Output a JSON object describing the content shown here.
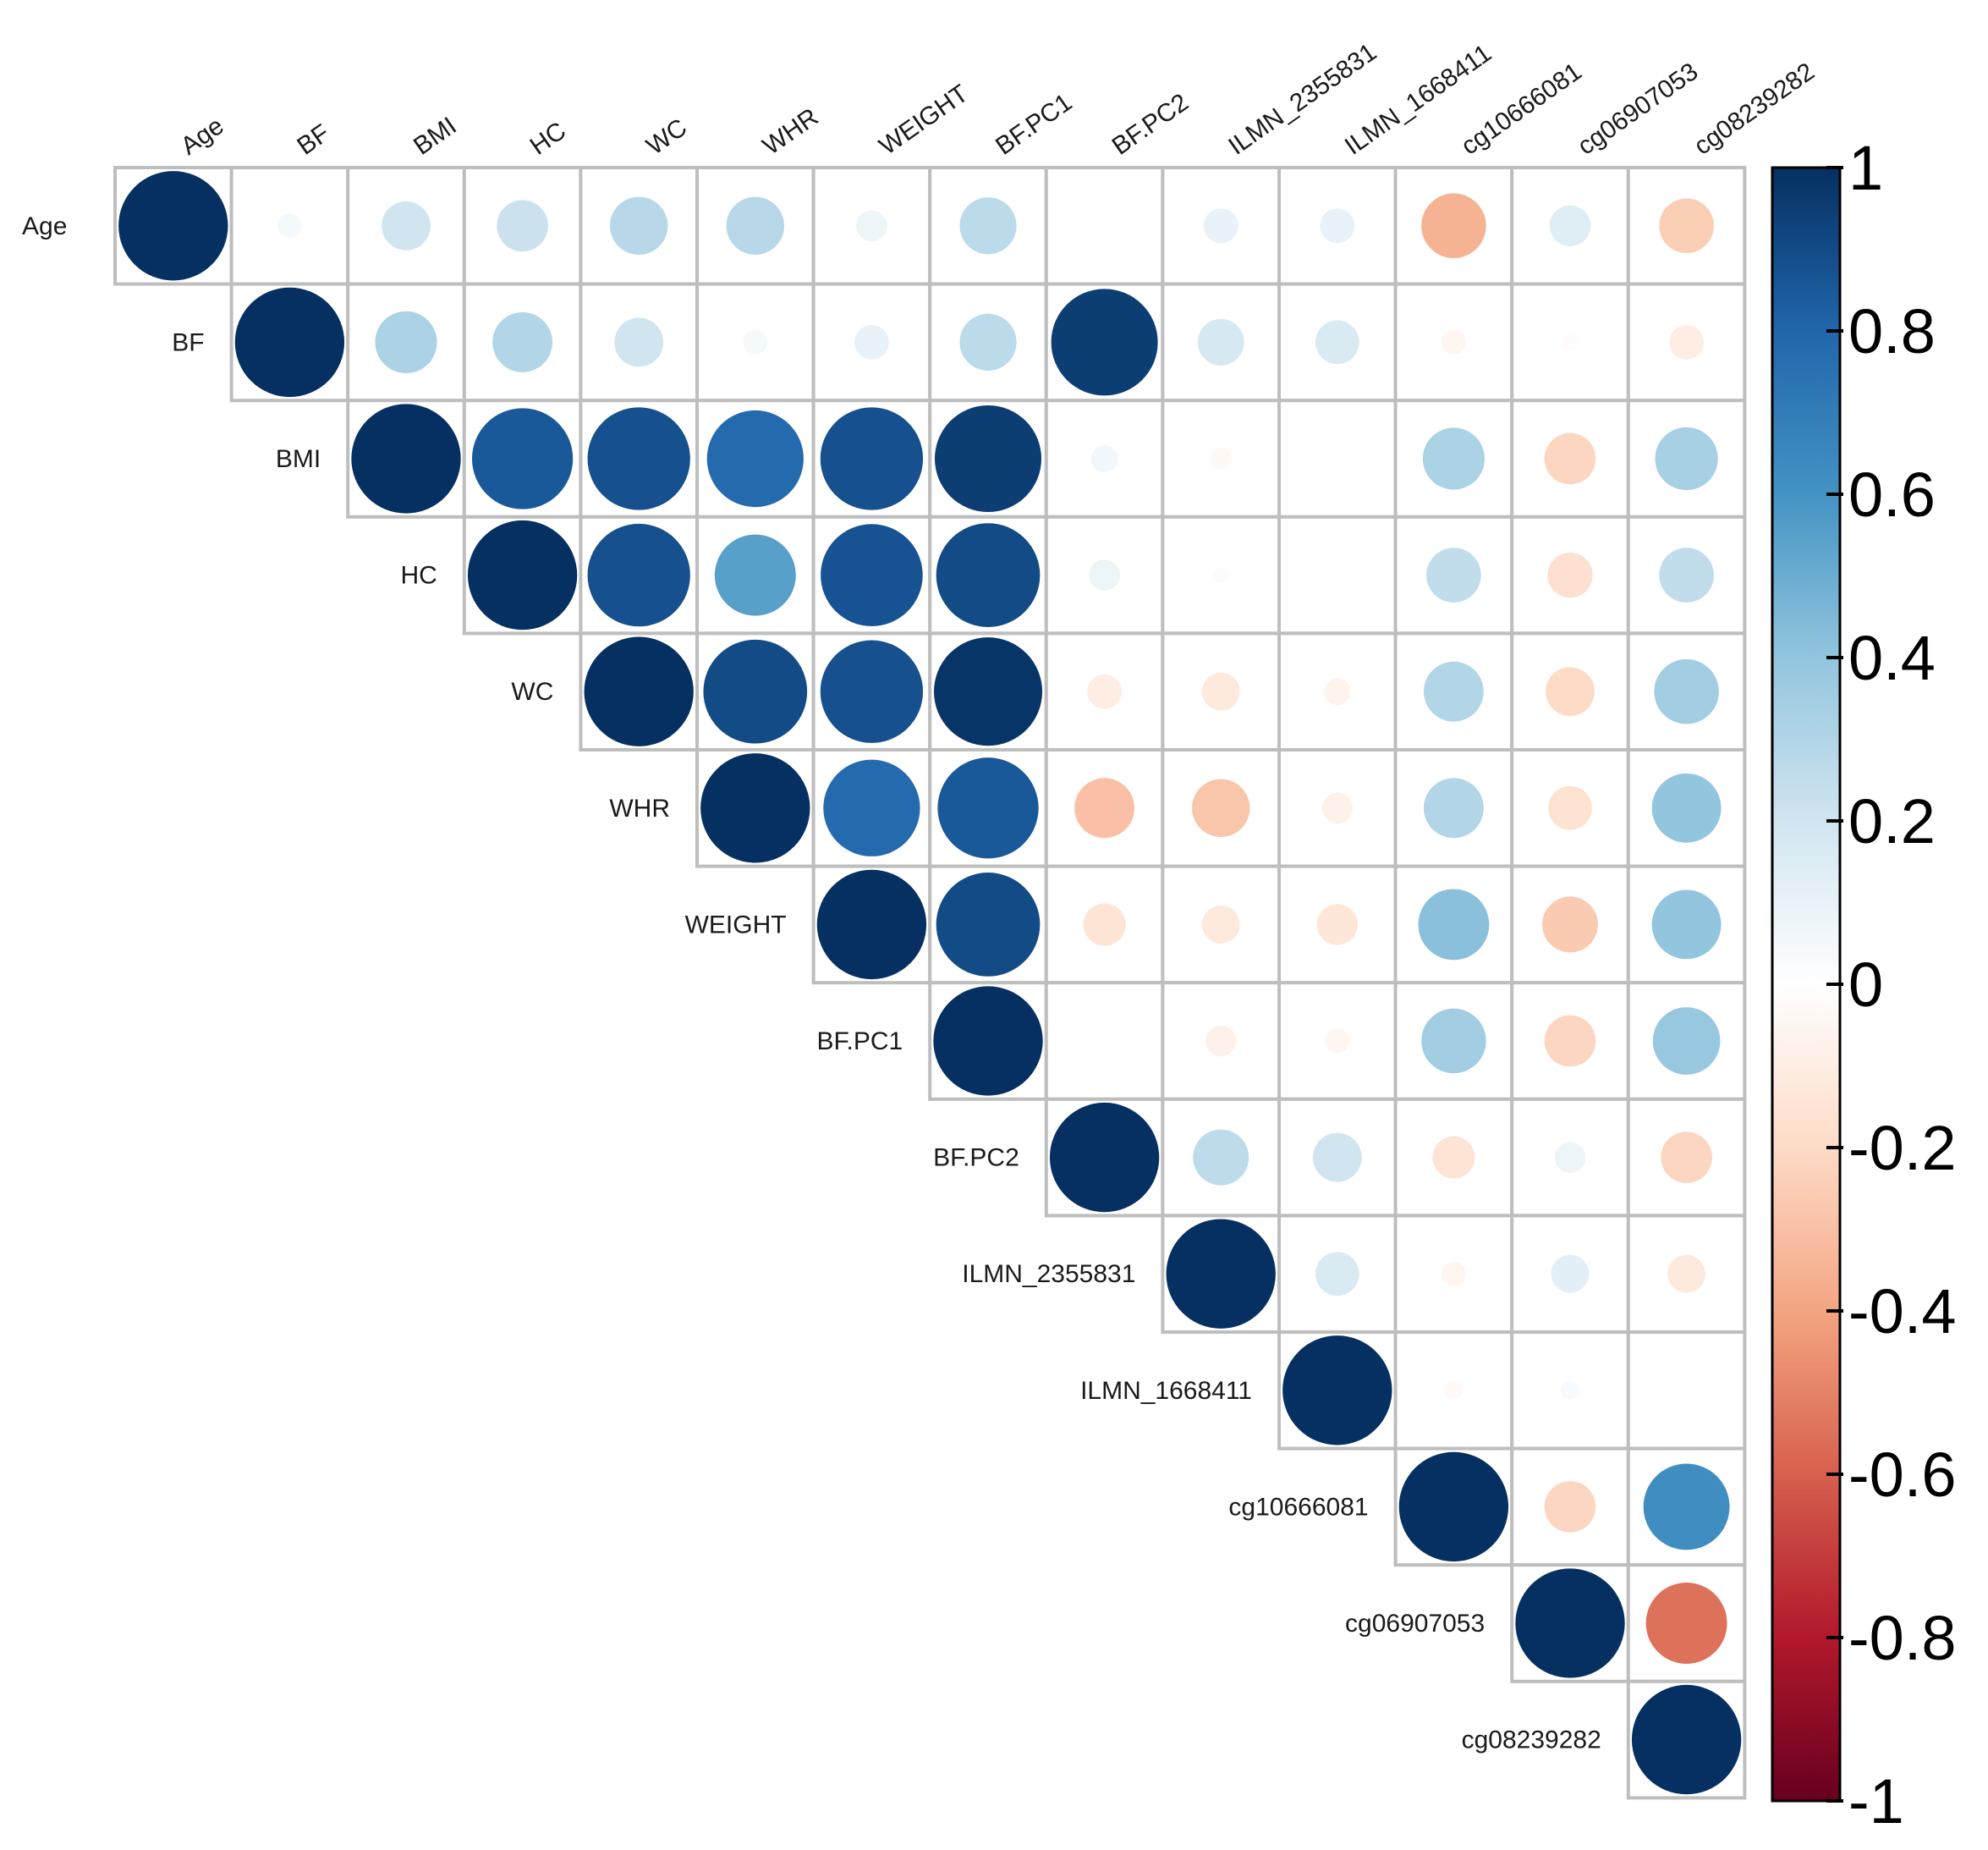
{
  "chart_data": {
    "type": "heatmap",
    "title": "",
    "style": "upper-triangle correlation matrix with circle glyphs",
    "variables": [
      "Age",
      "BF",
      "BMI",
      "HC",
      "WC",
      "WHR",
      "WEIGHT",
      "BF.PC1",
      "BF.PC2",
      "ILMN_2355831",
      "ILMN_1668411",
      "cg10666081",
      "cg06907053",
      "cg08239282"
    ],
    "matrix": [
      [
        1.0,
        0.05,
        0.2,
        0.22,
        0.28,
        0.28,
        0.08,
        0.27,
        0.0,
        0.1,
        0.1,
        -0.35,
        0.14,
        -0.25
      ],
      [
        null,
        1.0,
        0.32,
        0.3,
        0.2,
        0.05,
        0.1,
        0.27,
        0.95,
        0.18,
        0.16,
        -0.05,
        -0.02,
        -0.1
      ],
      [
        null,
        null,
        1.0,
        0.85,
        0.88,
        0.78,
        0.88,
        0.95,
        0.06,
        -0.04,
        0.0,
        0.32,
        -0.22,
        0.33
      ],
      [
        null,
        null,
        null,
        1.0,
        0.88,
        0.55,
        0.87,
        0.9,
        0.08,
        0.02,
        0.01,
        0.25,
        -0.17,
        0.25
      ],
      [
        null,
        null,
        null,
        null,
        1.0,
        0.9,
        0.88,
        0.98,
        -0.1,
        -0.12,
        -0.06,
        0.3,
        -0.2,
        0.35
      ],
      [
        null,
        null,
        null,
        null,
        null,
        1.0,
        0.78,
        0.85,
        -0.3,
        -0.28,
        -0.08,
        0.3,
        -0.16,
        0.4
      ],
      [
        null,
        null,
        null,
        null,
        null,
        null,
        1.0,
        0.9,
        -0.15,
        -0.12,
        -0.14,
        0.42,
        -0.26,
        0.4
      ],
      [
        null,
        null,
        null,
        null,
        null,
        null,
        null,
        1.0,
        0.0,
        -0.08,
        -0.05,
        0.35,
        -0.22,
        0.38
      ],
      [
        null,
        null,
        null,
        null,
        null,
        null,
        null,
        null,
        1.0,
        0.26,
        0.2,
        -0.15,
        0.08,
        -0.22
      ],
      [
        null,
        null,
        null,
        null,
        null,
        null,
        null,
        null,
        null,
        1.0,
        0.16,
        -0.05,
        0.12,
        -0.12
      ],
      [
        null,
        null,
        null,
        null,
        null,
        null,
        null,
        null,
        null,
        null,
        1.0,
        -0.03,
        0.03,
        0.0
      ],
      [
        null,
        null,
        null,
        null,
        null,
        null,
        null,
        null,
        null,
        null,
        null,
        1.0,
        -0.22,
        0.62
      ],
      [
        null,
        null,
        null,
        null,
        null,
        null,
        null,
        null,
        null,
        null,
        null,
        null,
        1.0,
        -0.55
      ],
      [
        null,
        null,
        null,
        null,
        null,
        null,
        null,
        null,
        null,
        null,
        null,
        null,
        null,
        1.0
      ]
    ],
    "colorbar": {
      "range": [
        -1,
        1
      ],
      "ticks": [
        1,
        0.8,
        0.6,
        0.4,
        0.2,
        0,
        -0.2,
        -0.4,
        -0.6,
        -0.8,
        -1
      ],
      "tick_labels": [
        "1",
        "0.8",
        "0.6",
        "0.4",
        "0.2",
        "0",
        "-0.2",
        "-0.4",
        "-0.6",
        "-0.8",
        "-1"
      ],
      "palette": [
        "#67001F",
        "#B2182B",
        "#D6604D",
        "#F4A582",
        "#FDDBC7",
        "#FFFFFF",
        "#D1E5F0",
        "#92C5DE",
        "#4393C3",
        "#2166AC",
        "#053061"
      ],
      "placement": "right"
    },
    "grid_color": "#BEBEBE"
  }
}
